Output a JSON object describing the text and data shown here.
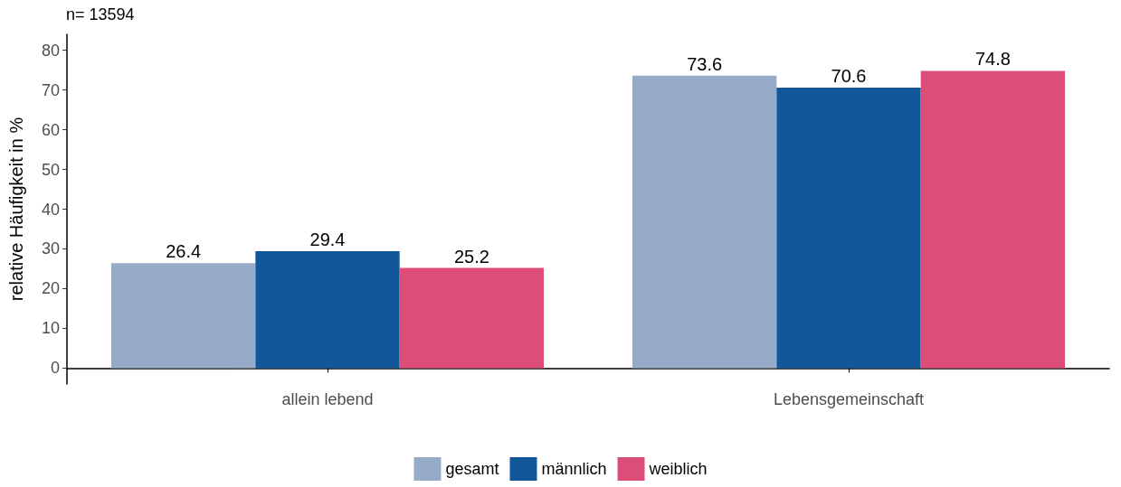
{
  "chart_data": {
    "type": "bar",
    "title": "n= 13594",
    "ylabel": "relative Häufigkeit in %",
    "categories": [
      "allein lebend",
      "Lebensgemeinschaft"
    ],
    "series": [
      {
        "name": "gesamt",
        "color": "#95abc8",
        "values": [
          26.4,
          73.6
        ]
      },
      {
        "name": "männlich",
        "color": "#13579b",
        "values": [
          29.4,
          70.6
        ]
      },
      {
        "name": "weiblich",
        "color": "#dc4e77",
        "values": [
          25.2,
          74.8
        ]
      }
    ],
    "ylim": [
      -4,
      84
    ],
    "yticks": [
      0,
      10,
      20,
      30,
      40,
      50,
      60,
      70,
      80
    ],
    "grid": false,
    "legend": "bottom",
    "data_labels": true
  }
}
